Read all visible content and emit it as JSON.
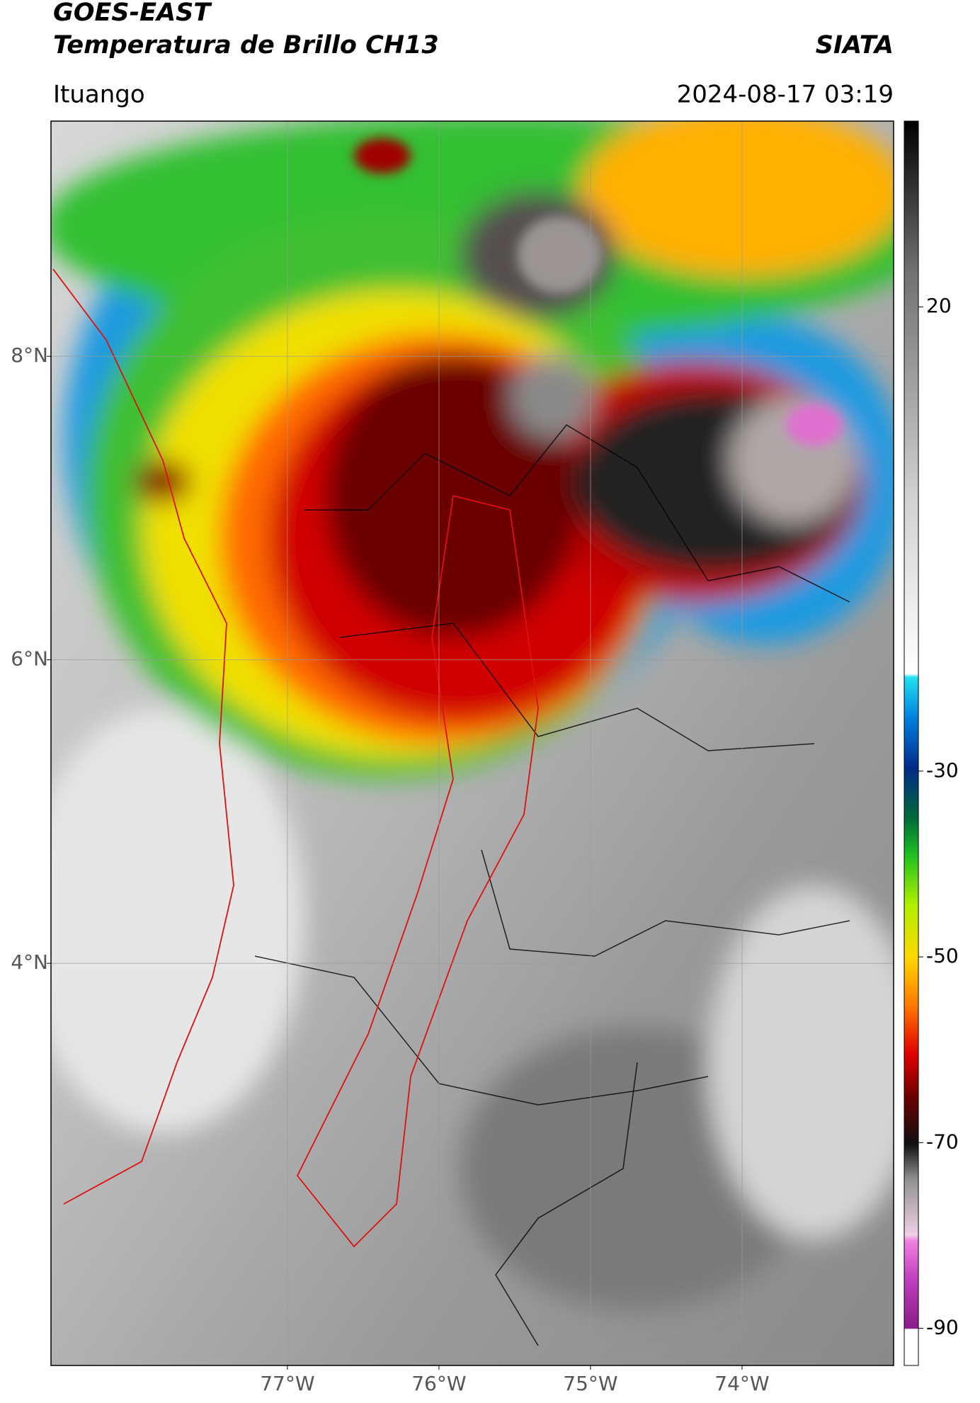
{
  "chart_data": {
    "type": "map",
    "title": "GOES-EAST",
    "subtitle": "Temperatura de Brillo CH13",
    "source": "SIATA",
    "location": "Ituango",
    "datetime": "2024-08-17 03:19",
    "xlim": [
      -78.56,
      -73.0
    ],
    "ylim": [
      1.35,
      9.55
    ],
    "xticks": [
      {
        "value": -77,
        "label": "77°W"
      },
      {
        "value": -76,
        "label": "76°W"
      },
      {
        "value": -75,
        "label": "75°W"
      },
      {
        "value": -74,
        "label": "74°W"
      }
    ],
    "yticks": [
      {
        "value": 8,
        "label": "8°N"
      },
      {
        "value": 6,
        "label": "6°N"
      },
      {
        "value": 4,
        "label": "4°N"
      }
    ],
    "grid": true,
    "colorbar": {
      "lim": [
        -94,
        40
      ],
      "ticks": [
        20,
        -30,
        -50,
        -70,
        -90
      ]
    }
  }
}
